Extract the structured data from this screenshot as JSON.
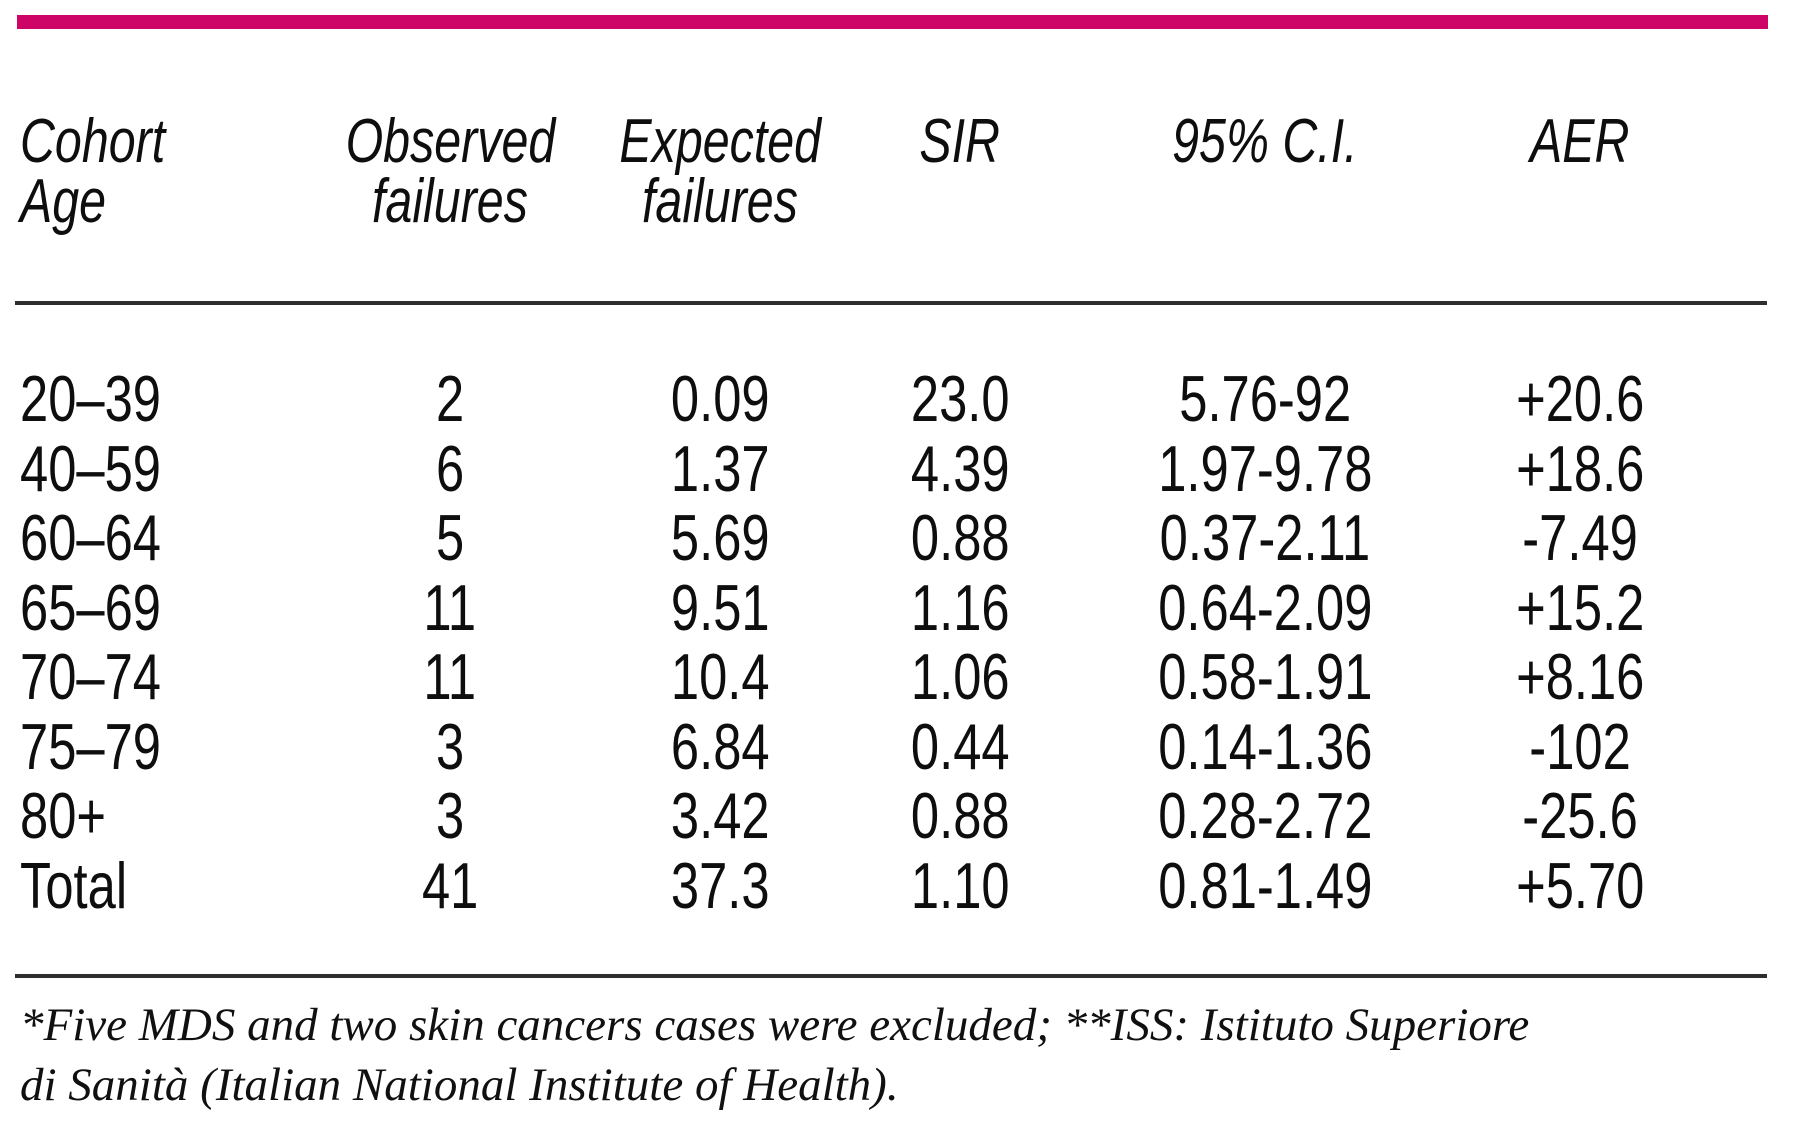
{
  "colors": {
    "accent": "#cd0566",
    "rule": "#2e2e2e",
    "text": "#0e0e0e"
  },
  "table": {
    "columns": [
      {
        "id": "age",
        "label_line1": "Cohort",
        "label_line2": "Age"
      },
      {
        "id": "observed",
        "label_line1": "Observed",
        "label_line2": "failures"
      },
      {
        "id": "expected",
        "label_line1": "Expected",
        "label_line2": "failures"
      },
      {
        "id": "sir",
        "label_line1": "SIR",
        "label_line2": ""
      },
      {
        "id": "ci",
        "label_line1": "95% C.I.",
        "label_line2": ""
      },
      {
        "id": "aer",
        "label_line1": "AER",
        "label_line2": ""
      }
    ],
    "rows": [
      {
        "age": "20–39",
        "observed": "2",
        "expected": "0.09",
        "sir": "23.0",
        "ci": "5.76-92",
        "aer": "+20.6"
      },
      {
        "age": "40–59",
        "observed": "6",
        "expected": "1.37",
        "sir": "4.39",
        "ci": "1.97-9.78",
        "aer": "+18.6"
      },
      {
        "age": "60–64",
        "observed": "5",
        "expected": "5.69",
        "sir": "0.88",
        "ci": "0.37-2.11",
        "aer": "-7.49"
      },
      {
        "age": "65–69",
        "observed": "11",
        "expected": "9.51",
        "sir": "1.16",
        "ci": "0.64-2.09",
        "aer": "+15.2"
      },
      {
        "age": "70–74",
        "observed": "11",
        "expected": "10.4",
        "sir": "1.06",
        "ci": "0.58-1.91",
        "aer": "+8.16"
      },
      {
        "age": "75–79",
        "observed": "3",
        "expected": "6.84",
        "sir": "0.44",
        "ci": "0.14-1.36",
        "aer": "-102"
      },
      {
        "age": "80+",
        "observed": "3",
        "expected": "3.42",
        "sir": "0.88",
        "ci": "0.28-2.72",
        "aer": "-25.6"
      },
      {
        "age": "Total",
        "observed": "41",
        "expected": "37.3",
        "sir": "1.10",
        "ci": "0.81-1.49",
        "aer": "+5.70"
      }
    ]
  },
  "footnote": {
    "line1": "*Five MDS and two skin cancers cases were excluded; **ISS: Istituto Superiore",
    "line2": "di Sanità (Italian National Institute of Health)."
  },
  "chart_data": {
    "type": "table",
    "title": "",
    "columns": [
      "Cohort Age",
      "Observed failures",
      "Expected failures",
      "SIR",
      "95% C.I.",
      "AER"
    ],
    "rows": [
      [
        "20–39",
        2,
        0.09,
        23.0,
        "5.76-92",
        20.6
      ],
      [
        "40–59",
        6,
        1.37,
        4.39,
        "1.97-9.78",
        18.6
      ],
      [
        "60–64",
        5,
        5.69,
        0.88,
        "0.37-2.11",
        -7.49
      ],
      [
        "65–69",
        11,
        9.51,
        1.16,
        "0.64-2.09",
        15.2
      ],
      [
        "70–74",
        11,
        10.4,
        1.06,
        "0.58-1.91",
        8.16
      ],
      [
        "75–79",
        3,
        6.84,
        0.44,
        "0.14-1.36",
        -102
      ],
      [
        "80+",
        3,
        3.42,
        0.88,
        "0.28-2.72",
        -25.6
      ],
      [
        "Total",
        41,
        37.3,
        1.1,
        "0.81-1.49",
        5.7
      ]
    ]
  }
}
